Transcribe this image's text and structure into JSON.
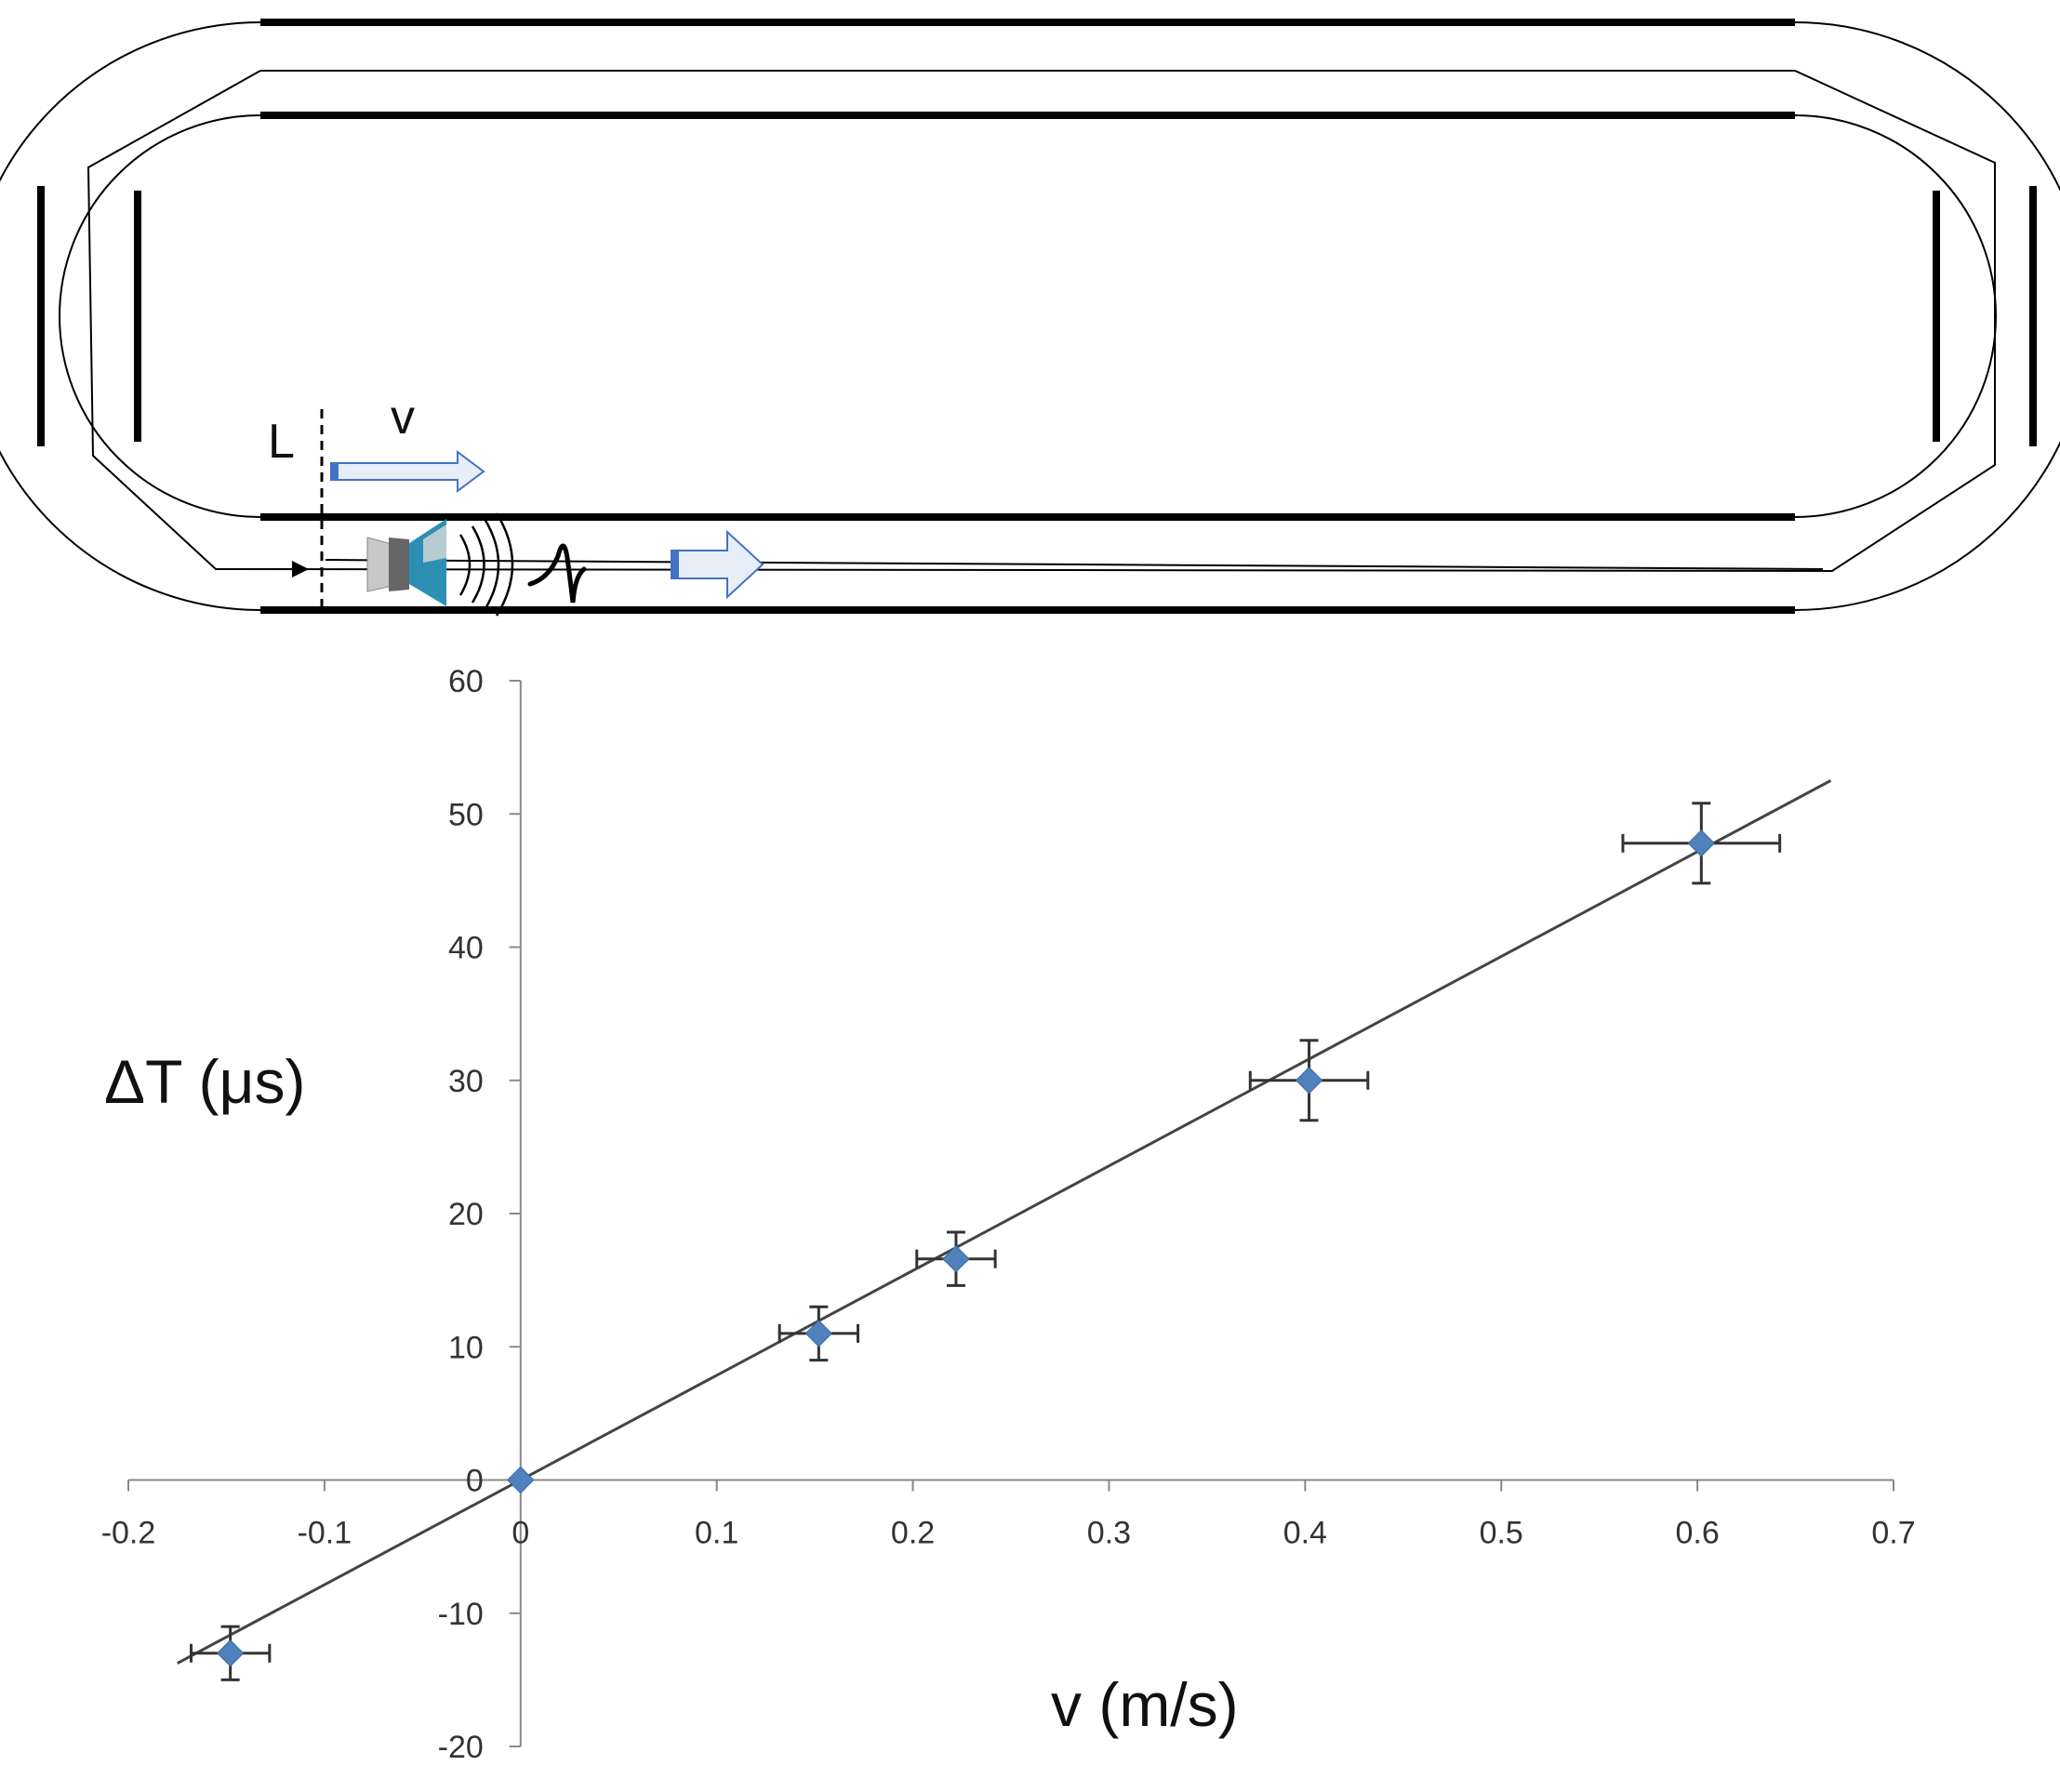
{
  "diagram": {
    "labels": {
      "length": "L",
      "speed": "v"
    },
    "colors": {
      "track": "#000000",
      "arrow": "#4472c4",
      "arrow_fill": "#e7eef8",
      "emitter": "#2e8fb5",
      "emitter_dark": "#555555"
    }
  },
  "chart_data": {
    "type": "scatter",
    "xlabel": "v (m/s)",
    "ylabel": "ΔT (μs)",
    "xlim": [
      -0.2,
      0.7
    ],
    "ylim": [
      -20,
      60
    ],
    "xticks": [
      -0.2,
      -0.1,
      0,
      0.1,
      0.2,
      0.3,
      0.4,
      0.5,
      0.6,
      0.7
    ],
    "yticks": [
      -20,
      -10,
      0,
      10,
      20,
      30,
      40,
      50,
      60
    ],
    "grid": false,
    "series": [
      {
        "marker": "diamond",
        "color": "#4f81bd",
        "points": [
          {
            "x": -0.148,
            "y": -13,
            "xerr": 0.02,
            "yerr": 2
          },
          {
            "x": 0,
            "y": 0,
            "xerr": 0,
            "yerr": 0
          },
          {
            "x": 0.152,
            "y": 11,
            "xerr": 0.02,
            "yerr": 2
          },
          {
            "x": 0.222,
            "y": 16.6,
            "xerr": 0.02,
            "yerr": 2
          },
          {
            "x": 0.402,
            "y": 30,
            "xerr": 0.03,
            "yerr": 3
          },
          {
            "x": 0.602,
            "y": 47.8,
            "xerr": 0.04,
            "yerr": 3
          }
        ]
      }
    ],
    "fit_line": {
      "slope": 78.6,
      "intercept": 0,
      "x_range": [
        -0.175,
        0.668
      ],
      "color": "#444444"
    }
  }
}
